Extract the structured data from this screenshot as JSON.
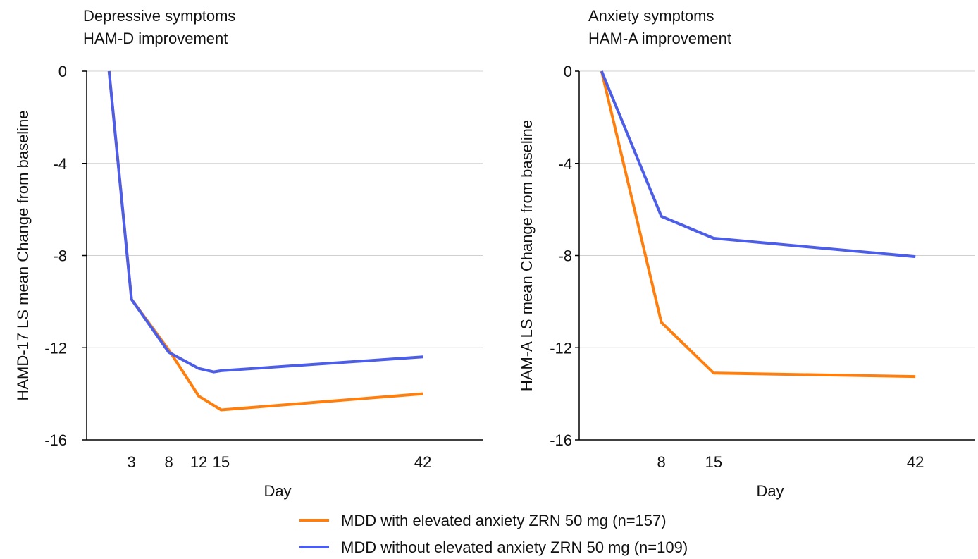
{
  "chart_data": [
    {
      "type": "line",
      "title_lines": [
        "Depressive symptoms",
        "HAM-D improvement"
      ],
      "xlabel": "Day",
      "ylabel": "HAMD-17 LS mean Change from baseline",
      "xlim": [
        -3,
        50
      ],
      "ylim": [
        -16,
        0
      ],
      "yticks": [
        0,
        -4,
        -8,
        -12,
        -16
      ],
      "xticks": [
        3,
        8,
        12,
        15,
        42
      ],
      "grid": true,
      "series": [
        {
          "name": "MDD with elevated anxiety ZRN 50 mg (n=157)",
          "color": "#ff7f0e",
          "x": [
            0,
            3,
            8,
            12,
            15,
            42
          ],
          "y": [
            0,
            -9.9,
            -12.1,
            -14.1,
            -14.7,
            -14.0
          ]
        },
        {
          "name": "MDD without elevated anxiety ZRN 50 mg (n=109)",
          "color": "#4c5ee8",
          "x": [
            0,
            3,
            8,
            12,
            14,
            15,
            42
          ],
          "y": [
            0,
            -9.9,
            -12.2,
            -12.9,
            -13.05,
            -13.0,
            -12.4
          ]
        }
      ]
    },
    {
      "type": "line",
      "title_lines": [
        "Anxiety symptoms",
        "HAM-A improvement"
      ],
      "xlabel": "Day",
      "ylabel": "HAM-A LS mean Change from baseline",
      "xlim": [
        -3,
        50
      ],
      "ylim": [
        -16,
        0
      ],
      "yticks": [
        0,
        -4,
        -8,
        -12,
        -16
      ],
      "xticks": [
        8,
        15,
        42
      ],
      "grid": true,
      "series": [
        {
          "name": "MDD with elevated anxiety ZRN 50 mg (n=157)",
          "color": "#ff7f0e",
          "x": [
            0,
            8,
            15,
            42
          ],
          "y": [
            0,
            -10.9,
            -13.1,
            -13.25
          ]
        },
        {
          "name": "MDD without elevated anxiety ZRN 50 mg (n=109)",
          "color": "#4c5ee8",
          "x": [
            0,
            8,
            15,
            42
          ],
          "y": [
            0,
            -6.3,
            -7.25,
            -8.05
          ]
        }
      ]
    }
  ],
  "legend": {
    "placement": "bottom-center",
    "entries": [
      {
        "label": "MDD with elevated anxiety ZRN 50 mg (n=157)",
        "color": "#ff7f0e"
      },
      {
        "label": "MDD without elevated anxiety ZRN 50 mg (n=109)",
        "color": "#4c5ee8"
      }
    ]
  }
}
